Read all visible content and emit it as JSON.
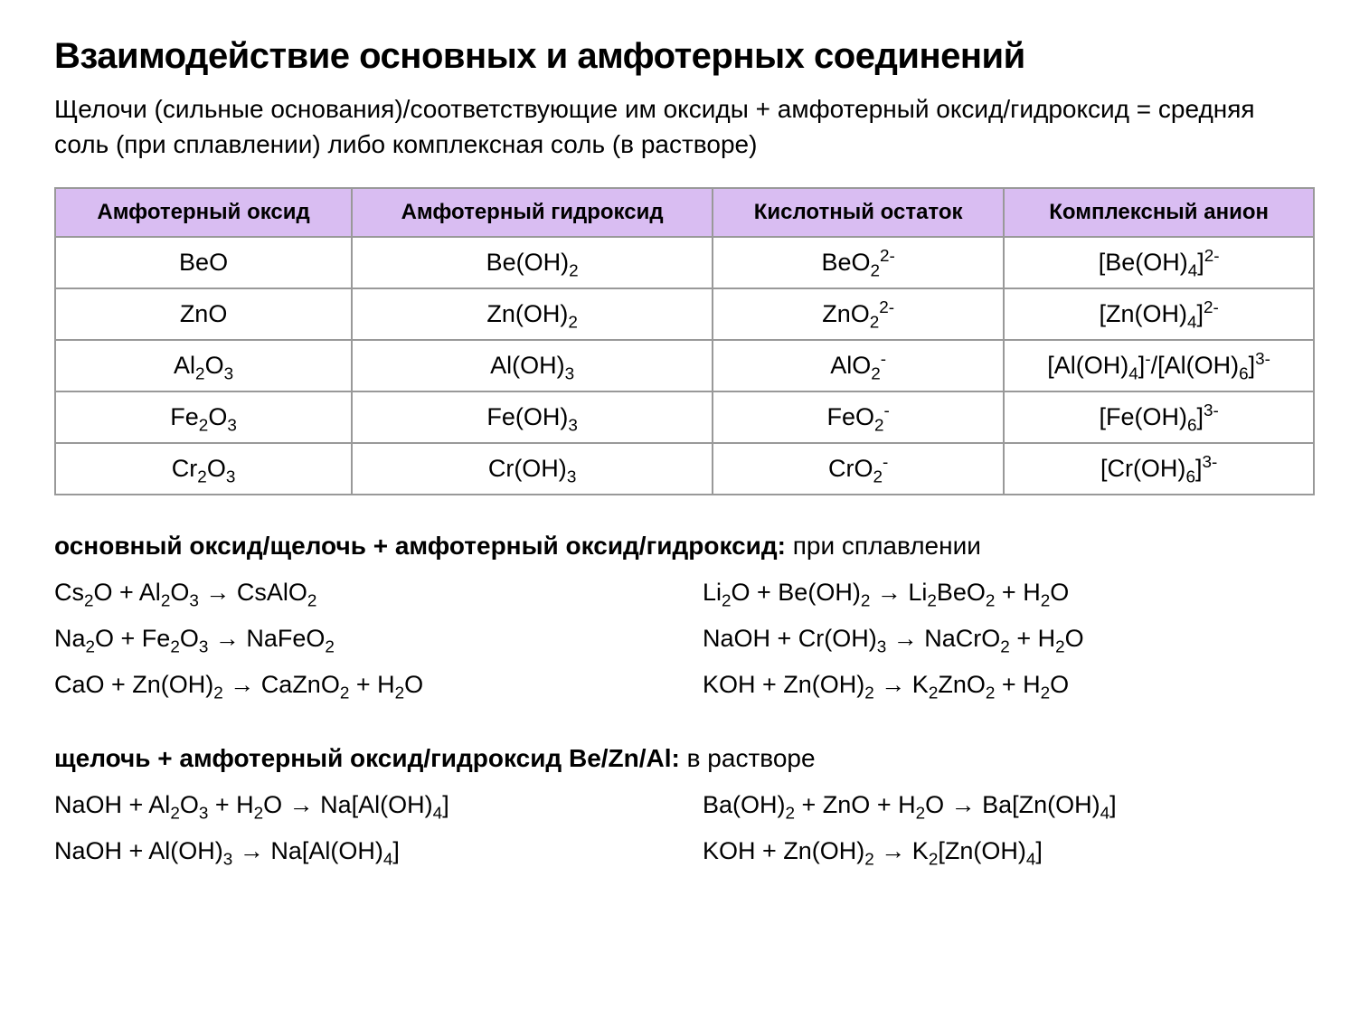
{
  "title": "Взаимодействие основных и амфотерных соединений",
  "subtitle": "Щелочи (сильные основания)/соответствующие им оксиды + амфотерный оксид/гидроксид = средняя соль (при сплавлении) либо комплексная соль (в растворе)",
  "table": {
    "columns": [
      "Амфотерный оксид",
      "Амфотерный гидроксид",
      "Кислотный остаток",
      "Комплексный анион"
    ],
    "rows": [
      [
        "BeO",
        "Be(OH)<sub>2</sub>",
        "BeO<sub>2</sub><sup>2-</sup>",
        "[Be(OH)<sub>4</sub>]<sup>2-</sup>"
      ],
      [
        "ZnO",
        "Zn(OH)<sub>2</sub>",
        "ZnO<sub>2</sub><sup>2-</sup>",
        "[Zn(OH)<sub>4</sub>]<sup>2-</sup>"
      ],
      [
        "Al<sub>2</sub>O<sub>3</sub>",
        "Al(OH)<sub>3</sub>",
        "AlO<sub>2</sub><sup>-</sup>",
        "[Al(OH)<sub>4</sub>]<sup>-</sup>/[Al(OH)<sub>6</sub>]<sup>3-</sup>"
      ],
      [
        "Fe<sub>2</sub>O<sub>3</sub>",
        "Fe(OH)<sub>3</sub>",
        "FeO<sub>2</sub><sup>-</sup>",
        "[Fe(OH)<sub>6</sub>]<sup>3-</sup>"
      ],
      [
        "Cr<sub>2</sub>O<sub>3</sub>",
        "Cr(OH)<sub>3</sub>",
        "CrO<sub>2</sub><sup>-</sup>",
        "[Cr(OH)<sub>6</sub>]<sup>3-</sup>"
      ]
    ],
    "header_bg": "#d9bdf2",
    "border_color": "#999999"
  },
  "section1": {
    "title_bold": "основный оксид/щелочь + амфотерный оксид/гидроксид:",
    "title_rest": " при сплавлении",
    "equations_left": [
      "Cs<sub>2</sub>O + Al<sub>2</sub>O<sub>3</sub> → CsAlO<sub>2</sub>",
      "Na<sub>2</sub>O + Fe<sub>2</sub>O<sub>3</sub> → NaFeO<sub>2</sub>",
      "CaO + Zn(OH)<sub>2</sub> → CaZnO<sub>2</sub> + H<sub>2</sub>O"
    ],
    "equations_right": [
      "Li<sub>2</sub>O + Be(OH)<sub>2</sub> → Li<sub>2</sub>BeO<sub>2</sub> + H<sub>2</sub>O",
      "NaOH + Cr(OH)<sub>3</sub> → NaCrO<sub>2</sub> + H<sub>2</sub>O",
      "KOH + Zn(OH)<sub>2</sub> → K<sub>2</sub>ZnO<sub>2</sub> + H<sub>2</sub>O"
    ]
  },
  "section2": {
    "title_bold": "щелочь + амфотерный оксид/гидроксид Be/Zn/Al:",
    "title_rest": " в растворе",
    "equations_left": [
      "NaOH + Al<sub>2</sub>O<sub>3</sub> + H<sub>2</sub>O → Na[Al(OH)<sub>4</sub>]",
      "NaOH + Al(OH)<sub>3</sub> → Na[Al(OH)<sub>4</sub>]"
    ],
    "equations_right": [
      "Ba(OH)<sub>2</sub> + ZnO + H<sub>2</sub>O → Ba[Zn(OH)<sub>4</sub>]",
      "KOH + Zn(OH)<sub>2</sub> → K<sub>2</sub>[Zn(OH)<sub>4</sub>]"
    ]
  }
}
